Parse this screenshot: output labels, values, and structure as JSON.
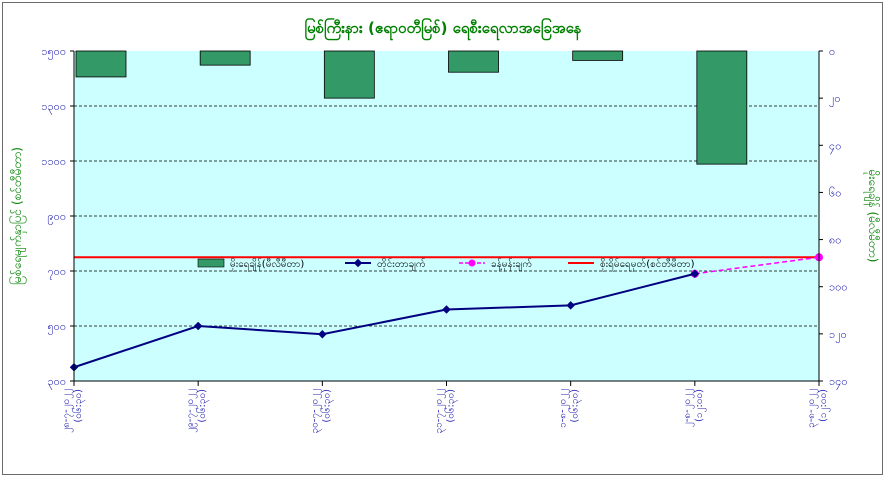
{
  "colors": {
    "plot_bg": "#ccffff",
    "bar_fill": "#339966",
    "bar_stroke": "#000000",
    "flow_line": "#000080",
    "forecast_line": "#ff00ff",
    "danger_line": "#ff0000",
    "grid": "#000000",
    "text_blue": "#1f1fb0",
    "text_green": "#008000"
  },
  "chart_data": {
    "type": "bar+line",
    "title": "မြစ်ကြီးနား (ဧရာဝတီမြစ်) ရေစီးရေလာအခြေအနေ",
    "ylabel_left": "မြစ်ရေမျက်နှာပြင် (စင်တီမီတာ)",
    "ylabel_right": "မိုးရေချိန် (မီလီမီတာ)",
    "grid": true,
    "legend_placement": "center",
    "left_axis": {
      "min": 300,
      "max": 1500,
      "step": 200,
      "tick_labels": [
        "၃၀၀",
        "၅၀၀",
        "၇၀၀",
        "၉၀၀",
        "၁၁၀၀",
        "၁၃၀၀",
        "၁၅၀၀"
      ]
    },
    "right_axis": {
      "min": 0,
      "max": 140,
      "step": 20,
      "reversed": true,
      "tick_labels": [
        "၀",
        "၂၀",
        "၄၀",
        "၆၀",
        "၈၀",
        "၁၀၀",
        "၁၂၀",
        "၁၄၀"
      ]
    },
    "categories": [
      {
        "date": "၂၈-၇-၂၀၂၂",
        "time": "(၀၆:၃၀)"
      },
      {
        "date": "၂၉-၇-၂၀၂၂",
        "time": "(၀၆:၃၀)"
      },
      {
        "date": "၃၀-၇-၂၀၂၂",
        "time": "(၀၆:၃၀)"
      },
      {
        "date": "၃၁-၇-၂၀၂၂",
        "time": "(၀၆:၃၀)"
      },
      {
        "date": "၁-၈-၂၀၂၂",
        "time": "(၀၆:၃၀)"
      },
      {
        "date": "၂-၈-၂၀၂၂",
        "time": "(၁၂:၀၀)"
      },
      {
        "date": "၃-၈-၂၀၂၂",
        "time": "(၁၂:၀၀)"
      }
    ],
    "series": [
      {
        "name": "မိုးရေချိန်(မီလီမီတာ)",
        "type": "bar",
        "axis": "right",
        "values": [
          11,
          6,
          20,
          9,
          4,
          48,
          null
        ]
      },
      {
        "name": "တိုင်းတာချက်",
        "type": "line",
        "axis": "left",
        "values": [
          350,
          500,
          470,
          560,
          575,
          690,
          null
        ]
      },
      {
        "name": "ခန့်မှန်းချက်",
        "type": "line-dashed",
        "axis": "left",
        "values": [
          null,
          null,
          null,
          null,
          null,
          690,
          750
        ]
      },
      {
        "name": "စိုးရိမ်ရေမှတ်(စင်တီမီတာ)",
        "type": "hline",
        "axis": "left",
        "value": 750
      }
    ]
  }
}
